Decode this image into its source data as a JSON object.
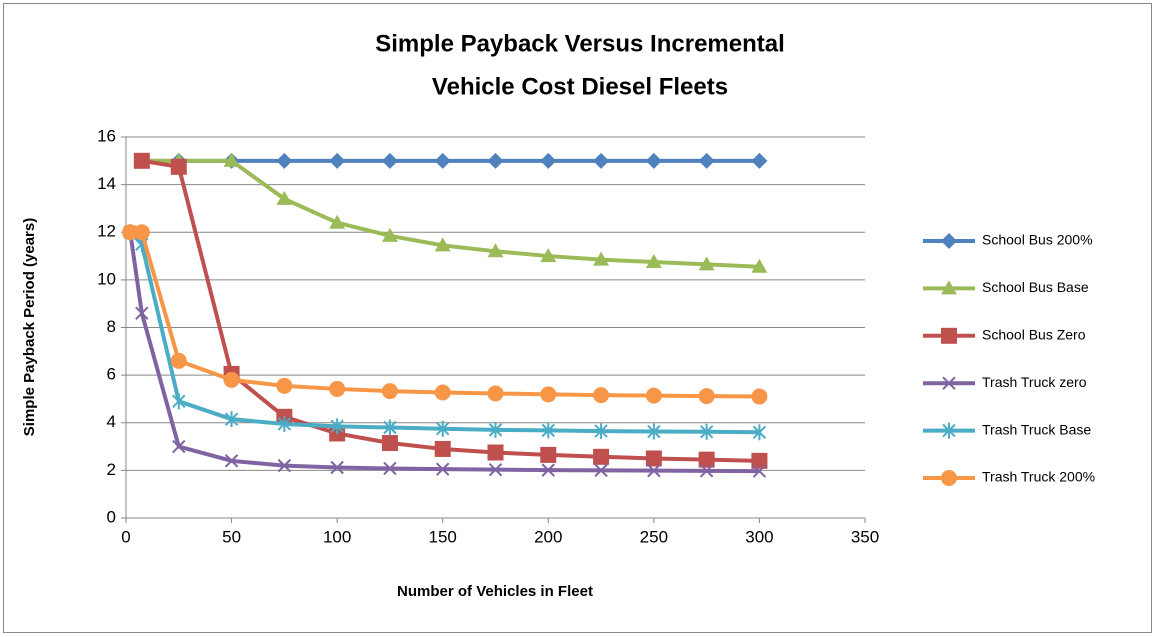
{
  "chart_data": {
    "type": "line",
    "title": [
      "Simple Payback Versus Incremental",
      "Vehicle Cost Diesel Fleets"
    ],
    "xlabel": "Number of Vehicles in Fleet",
    "ylabel": "Simple Payback Period (years)",
    "xlim": [
      0,
      350
    ],
    "xticks": [
      0,
      50,
      100,
      150,
      200,
      250,
      300,
      350
    ],
    "ylim": [
      0,
      16
    ],
    "yticks": [
      0,
      2,
      4,
      6,
      8,
      10,
      12,
      14,
      16
    ],
    "grid": true,
    "legend": "right",
    "series": [
      {
        "name": "School Bus 200%",
        "color": "#4F81BD",
        "marker": "diamond",
        "x": [
          7.5,
          25,
          50,
          75,
          100,
          125,
          150,
          175,
          200,
          225,
          250,
          275,
          300
        ],
        "values": [
          15,
          15,
          15,
          15,
          15,
          15,
          15,
          15,
          15,
          15,
          15,
          15,
          15
        ]
      },
      {
        "name": "School Bus Base",
        "color": "#9BBB59",
        "marker": "triangle",
        "x": [
          7.5,
          25,
          50,
          75,
          100,
          125,
          150,
          175,
          200,
          225,
          250,
          275,
          300
        ],
        "values": [
          15,
          15,
          15,
          13.4,
          12.4,
          11.85,
          11.45,
          11.2,
          11.0,
          10.85,
          10.75,
          10.65,
          10.55
        ]
      },
      {
        "name": "School Bus Zero",
        "color": "#C0504D",
        "marker": "square",
        "x": [
          7.5,
          25,
          50,
          75,
          100,
          125,
          150,
          175,
          200,
          225,
          250,
          275,
          300
        ],
        "values": [
          15,
          14.75,
          6.05,
          4.25,
          3.55,
          3.15,
          2.9,
          2.75,
          2.65,
          2.57,
          2.5,
          2.45,
          2.4
        ]
      },
      {
        "name": "Trash Truck zero",
        "color": "#8064A2",
        "marker": "x",
        "x": [
          2,
          7.5,
          25,
          50,
          75,
          100,
          125,
          150,
          175,
          200,
          225,
          250,
          275,
          300
        ],
        "values": [
          12,
          8.6,
          3.0,
          2.4,
          2.2,
          2.12,
          2.08,
          2.05,
          2.03,
          2.01,
          2.0,
          1.99,
          1.98,
          1.97
        ]
      },
      {
        "name": "Trash Truck Base",
        "color": "#4BACC6",
        "marker": "star",
        "x": [
          2,
          7.5,
          25,
          50,
          75,
          100,
          125,
          150,
          175,
          200,
          225,
          250,
          275,
          300
        ],
        "values": [
          12,
          11.5,
          4.9,
          4.15,
          3.95,
          3.85,
          3.8,
          3.75,
          3.7,
          3.68,
          3.65,
          3.63,
          3.62,
          3.6
        ]
      },
      {
        "name": "Trash Truck 200%",
        "color": "#F79646",
        "marker": "circle",
        "x": [
          2,
          7.5,
          25,
          50,
          75,
          100,
          125,
          150,
          175,
          200,
          225,
          250,
          275,
          300
        ],
        "values": [
          12,
          12,
          6.6,
          5.8,
          5.55,
          5.42,
          5.33,
          5.27,
          5.23,
          5.19,
          5.16,
          5.14,
          5.12,
          5.1
        ]
      }
    ]
  }
}
